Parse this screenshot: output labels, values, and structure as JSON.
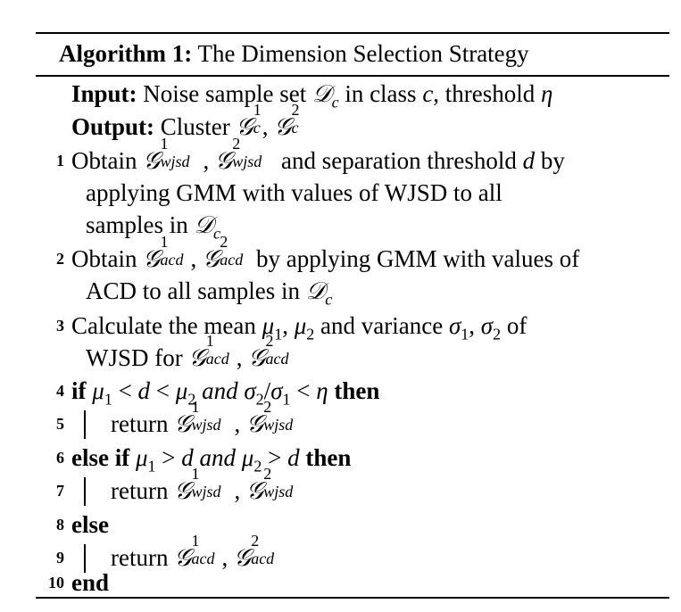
{
  "title": {
    "label": "Algorithm 1:",
    "text": "The Dimension Selection Strategy"
  },
  "input": {
    "label": "Input:",
    "text_a": "Noise sample set ",
    "text_b": " in class ",
    "text_c": ", threshold "
  },
  "output": {
    "label": "Output:",
    "text": "Cluster "
  },
  "lines": [
    {
      "num": "1",
      "a": "Obtain ",
      "b": " and separation threshold ",
      "c": " by"
    },
    {
      "num": "",
      "a": "applying GMM with values of WJSD to all"
    },
    {
      "num": "",
      "a": "samples in "
    },
    {
      "num": "2",
      "a": "Obtain ",
      "b": " by applying GMM with values of"
    },
    {
      "num": "",
      "a": "ACD to all samples in "
    },
    {
      "num": "3",
      "a": "Calculate the mean ",
      "b": " and variance ",
      "c": " of"
    },
    {
      "num": "",
      "a": "WJSD for "
    },
    {
      "num": "4",
      "kw1": "if",
      "and": "and",
      "kw2": "then"
    },
    {
      "num": "5",
      "a": "return "
    },
    {
      "num": "6",
      "kw1": "else if",
      "and": "and",
      "kw2": "then"
    },
    {
      "num": "7",
      "a": "return "
    },
    {
      "num": "8",
      "kw1": "else"
    },
    {
      "num": "9",
      "a": "return "
    },
    {
      "num": "10",
      "kw1": "end"
    }
  ]
}
